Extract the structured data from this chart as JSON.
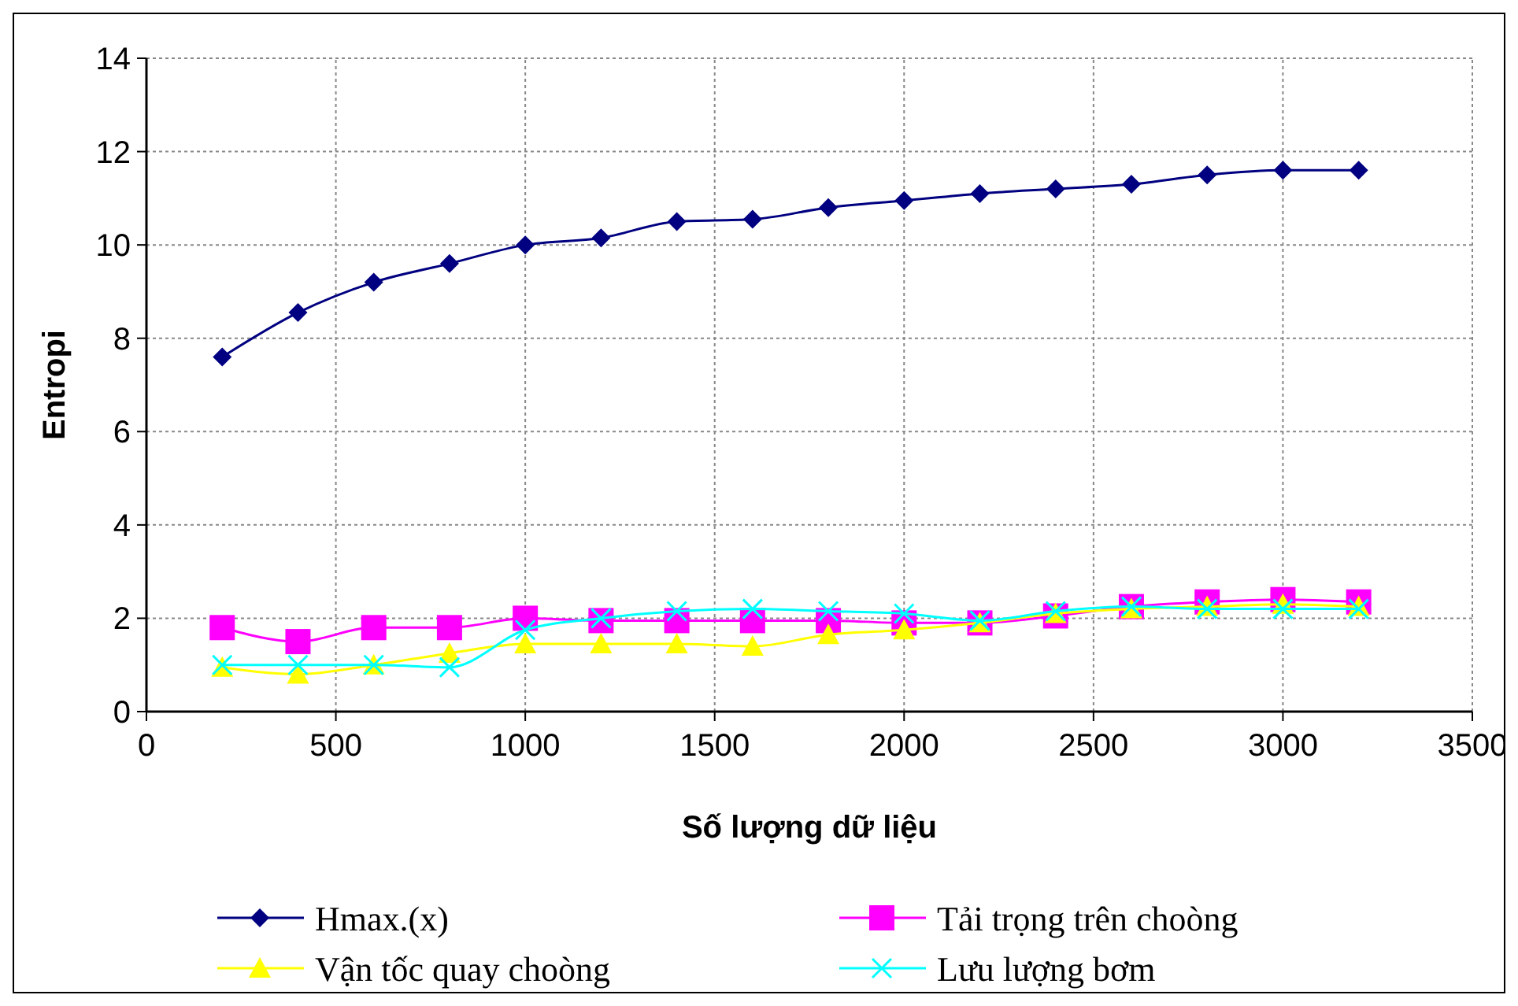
{
  "chart_data": {
    "type": "line",
    "xlabel": "Số lượng dữ liệu",
    "ylabel": "Entropi",
    "x": [
      200,
      400,
      600,
      800,
      1000,
      1200,
      1400,
      1600,
      1800,
      2000,
      2200,
      2400,
      2600,
      2800,
      3000,
      3200
    ],
    "xlim": [
      0,
      3500
    ],
    "xticks": [
      0,
      500,
      1000,
      1500,
      2000,
      2500,
      3000,
      3500
    ],
    "ylim": [
      0,
      14
    ],
    "yticks": [
      0,
      2,
      4,
      6,
      8,
      10,
      12,
      14
    ],
    "grid": true,
    "legend": "bottom",
    "line_style": "solid",
    "series": [
      {
        "name": "Hmax.(x)",
        "color": "#000080",
        "marker": "diamond",
        "values": [
          7.6,
          8.55,
          9.2,
          9.6,
          10.0,
          10.15,
          10.5,
          10.55,
          10.8,
          10.95,
          11.1,
          11.2,
          11.3,
          11.5,
          11.6,
          11.6
        ]
      },
      {
        "name": "Tải trọng trên choòng",
        "color": "#ff00ff",
        "marker": "square",
        "values": [
          1.8,
          1.5,
          1.8,
          1.8,
          2.0,
          1.95,
          1.95,
          1.95,
          1.95,
          1.9,
          1.9,
          2.05,
          2.25,
          2.35,
          2.4,
          2.35
        ]
      },
      {
        "name": "Vận tốc quay choòng",
        "color": "#ffff00",
        "marker": "triangle",
        "values": [
          0.95,
          0.8,
          1.0,
          1.25,
          1.45,
          1.45,
          1.45,
          1.4,
          1.65,
          1.75,
          1.9,
          2.1,
          2.2,
          2.25,
          2.3,
          2.25
        ]
      },
      {
        "name": "Lưu lượng bơm",
        "color": "#00ffff",
        "marker": "cross",
        "values": [
          1.0,
          1.0,
          1.0,
          0.95,
          1.75,
          2.0,
          2.15,
          2.2,
          2.15,
          2.1,
          1.95,
          2.15,
          2.25,
          2.2,
          2.2,
          2.2
        ]
      }
    ]
  }
}
